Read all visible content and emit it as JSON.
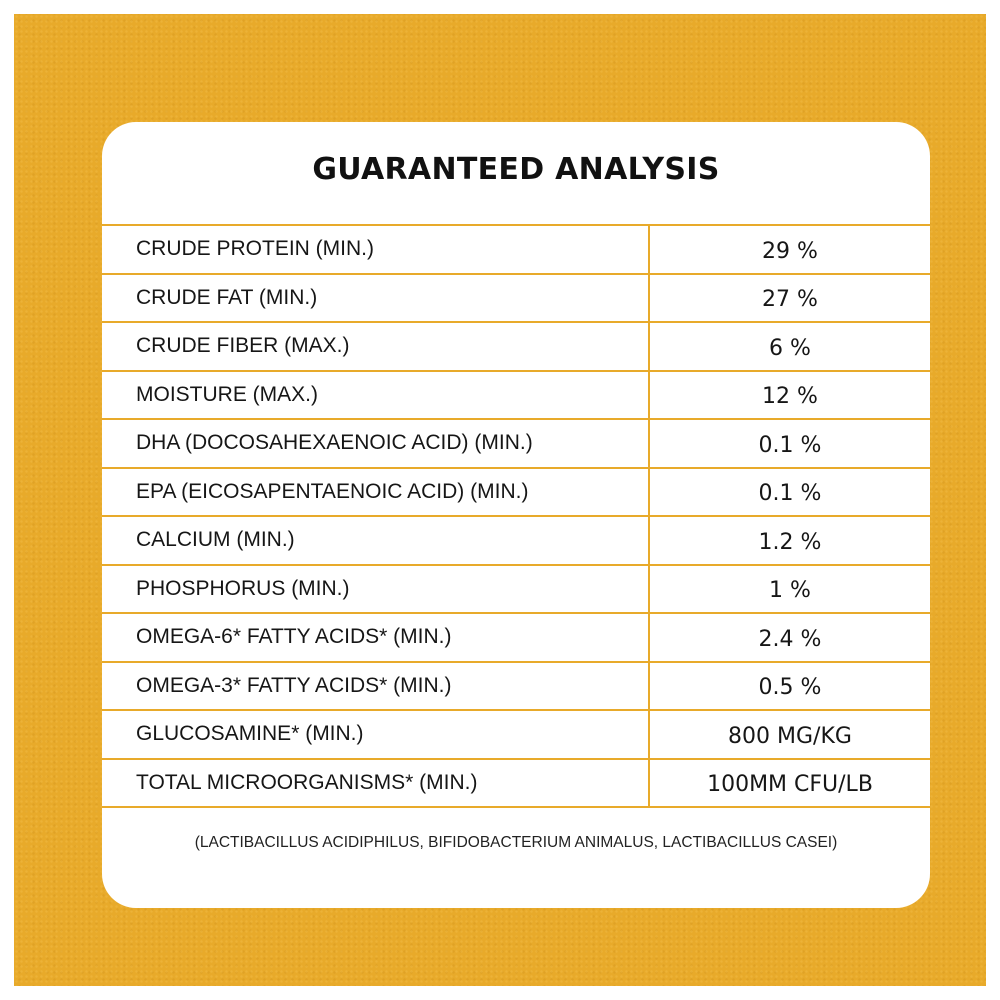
{
  "title": "GUARANTEED ANALYSIS",
  "rows": [
    {
      "label": "CRUDE PROTEIN (MIN.)",
      "value": "29 %"
    },
    {
      "label": "CRUDE FAT (MIN.)",
      "value": "27 %"
    },
    {
      "label": "CRUDE FIBER (MAX.)",
      "value": "6 %"
    },
    {
      "label": "MOISTURE (MAX.)",
      "value": "12 %"
    },
    {
      "label": "DHA (DOCOSAHEXAENOIC ACID) (MIN.)",
      "value": "0.1 %"
    },
    {
      "label": "EPA (EICOSAPENTAENOIC ACID) (MIN.)",
      "value": "0.1 %"
    },
    {
      "label": "CALCIUM (MIN.)",
      "value": "1.2 %"
    },
    {
      "label": "PHOSPHORUS (MIN.)",
      "value": "1 %"
    },
    {
      "label": "OMEGA-6* FATTY ACIDS* (MIN.)",
      "value": "2.4 %"
    },
    {
      "label": "OMEGA-3* FATTY ACIDS* (MIN.)",
      "value": "0.5 %"
    },
    {
      "label": "GLUCOSAMINE* (MIN.)",
      "value": "800 MG/KG"
    },
    {
      "label": "TOTAL MICROORGANISMS* (MIN.)",
      "value": "100MM CFU/LB"
    }
  ],
  "footnote": "(LACTIBACILLUS ACIDIPHILUS, BIFIDOBACTERIUM ANIMALUS, LACTIBACILLUS CASEI)",
  "colors": {
    "background": "#e8aa2a",
    "card": "#ffffff",
    "divider": "#e8aa2a",
    "text": "#161616"
  }
}
